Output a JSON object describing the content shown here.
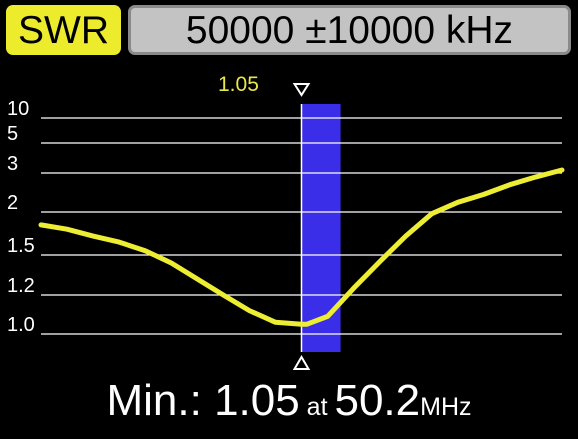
{
  "header": {
    "mode_label": "SWR",
    "range_label": "50000 ±10000 kHz"
  },
  "marker": {
    "value_label": "1.05"
  },
  "readout": {
    "min_label": "Min.:",
    "min_value": "1.05",
    "at_label": "at",
    "freq_value": "50.2",
    "freq_unit": "MHz"
  },
  "colors": {
    "background": "#000000",
    "grid": "#ffffff",
    "trace": "#eded33",
    "marker_band": "#3a2ee8",
    "marker_line": "#ffffff",
    "badge": "#ecec2c"
  },
  "chart_data": {
    "type": "line",
    "title": "",
    "xlabel": "",
    "ylabel": "",
    "xlim": [
      40000,
      60000
    ],
    "x_unit": "kHz",
    "y_scale": "swr",
    "grid": true,
    "y_ticks": [
      {
        "value": 10,
        "label": "10"
      },
      {
        "value": 5,
        "label": "5"
      },
      {
        "value": 3,
        "label": "3"
      },
      {
        "value": 2,
        "label": "2"
      },
      {
        "value": 1.5,
        "label": "1.5"
      },
      {
        "value": 1.2,
        "label": "1.2"
      },
      {
        "value": 1.0,
        "label": "1.0"
      }
    ],
    "marker_x": 50000,
    "marker_band": [
      50000,
      51500
    ],
    "series": [
      {
        "x": [
          40000,
          41000,
          42000,
          43000,
          44000,
          45000,
          46000,
          47000,
          48000,
          49000,
          50000,
          50200,
          51000,
          52000,
          53000,
          54000,
          55000,
          56000,
          57000,
          58000,
          59000,
          60000
        ],
        "y": [
          1.85,
          1.8,
          1.72,
          1.65,
          1.55,
          1.44,
          1.32,
          1.2,
          1.12,
          1.06,
          1.05,
          1.05,
          1.09,
          1.25,
          1.45,
          1.72,
          1.98,
          2.25,
          2.45,
          2.7,
          2.9,
          3.2
        ]
      }
    ]
  }
}
